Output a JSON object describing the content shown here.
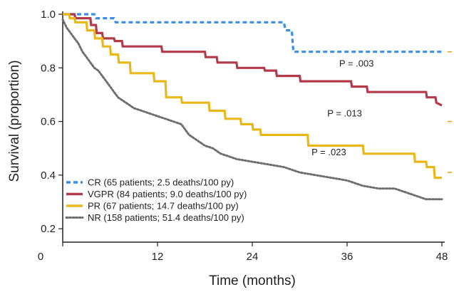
{
  "chart_data": {
    "type": "line",
    "xlabel": "Time (months)",
    "ylabel": "Survival (proportion)",
    "xlim": [
      0,
      48
    ],
    "ylim": [
      0.15,
      1.0
    ],
    "x_ticks": [
      0,
      12,
      24,
      36,
      48
    ],
    "y_ticks": [
      0.2,
      0.4,
      0.6,
      0.8,
      1.0
    ],
    "y_tick_labels": [
      "0.2",
      "0.4",
      "0.6",
      "0.8",
      "1.0"
    ],
    "grid": false,
    "legend_position": "bottom-left",
    "series": [
      {
        "name": "CR",
        "legend_suffix": "(65 patients; 2.5 deaths/100 py)",
        "color": "#3a8ee6",
        "style": "dashed",
        "points": [
          [
            0,
            1.0
          ],
          [
            4,
            1.0
          ],
          [
            4.2,
            0.985
          ],
          [
            6.5,
            0.985
          ],
          [
            6.7,
            0.97
          ],
          [
            28,
            0.97
          ],
          [
            28.2,
            0.94
          ],
          [
            29,
            0.94
          ],
          [
            29.2,
            0.86
          ],
          [
            48,
            0.86
          ]
        ]
      },
      {
        "name": "VGPR",
        "legend_suffix": "(84 patients; 9.0 deaths/100 py)",
        "color": "#b23a4a",
        "style": "solid",
        "points": [
          [
            0,
            1.0
          ],
          [
            1.5,
            1.0
          ],
          [
            1.6,
            0.985
          ],
          [
            3.5,
            0.985
          ],
          [
            3.6,
            0.96
          ],
          [
            4.2,
            0.96
          ],
          [
            4.3,
            0.93
          ],
          [
            5,
            0.93
          ],
          [
            5.1,
            0.91
          ],
          [
            6.5,
            0.91
          ],
          [
            6.6,
            0.9
          ],
          [
            7.5,
            0.9
          ],
          [
            7.6,
            0.88
          ],
          [
            12.5,
            0.88
          ],
          [
            12.6,
            0.86
          ],
          [
            18,
            0.86
          ],
          [
            18.1,
            0.84
          ],
          [
            19.5,
            0.84
          ],
          [
            19.6,
            0.82
          ],
          [
            22,
            0.82
          ],
          [
            22.1,
            0.8
          ],
          [
            25.5,
            0.8
          ],
          [
            25.6,
            0.79
          ],
          [
            27,
            0.79
          ],
          [
            27.1,
            0.77
          ],
          [
            30,
            0.77
          ],
          [
            30.1,
            0.75
          ],
          [
            36.5,
            0.75
          ],
          [
            36.6,
            0.73
          ],
          [
            38.5,
            0.73
          ],
          [
            38.6,
            0.71
          ],
          [
            46,
            0.71
          ],
          [
            46.1,
            0.69
          ],
          [
            47.2,
            0.69
          ],
          [
            47.3,
            0.67
          ],
          [
            48,
            0.66
          ]
        ]
      },
      {
        "name": "PR",
        "legend_suffix": "(67 patients; 14.7 deaths/100 py)",
        "color": "#e8b818",
        "style": "solid",
        "points": [
          [
            0,
            1.0
          ],
          [
            0.8,
            1.0
          ],
          [
            0.9,
            0.985
          ],
          [
            1.5,
            0.985
          ],
          [
            1.6,
            0.97
          ],
          [
            3,
            0.97
          ],
          [
            3.1,
            0.94
          ],
          [
            4,
            0.94
          ],
          [
            4.1,
            0.91
          ],
          [
            5,
            0.91
          ],
          [
            5.1,
            0.88
          ],
          [
            6,
            0.88
          ],
          [
            6.1,
            0.85
          ],
          [
            7,
            0.85
          ],
          [
            7.1,
            0.82
          ],
          [
            8.5,
            0.82
          ],
          [
            8.6,
            0.78
          ],
          [
            11.5,
            0.78
          ],
          [
            11.6,
            0.75
          ],
          [
            13,
            0.75
          ],
          [
            13.1,
            0.69
          ],
          [
            15,
            0.69
          ],
          [
            15.1,
            0.67
          ],
          [
            18.5,
            0.67
          ],
          [
            18.6,
            0.64
          ],
          [
            20.5,
            0.64
          ],
          [
            20.6,
            0.61
          ],
          [
            22.5,
            0.61
          ],
          [
            22.6,
            0.59
          ],
          [
            24,
            0.59
          ],
          [
            24.1,
            0.57
          ],
          [
            25,
            0.57
          ],
          [
            25.1,
            0.55
          ],
          [
            31,
            0.55
          ],
          [
            31.1,
            0.51
          ],
          [
            38,
            0.51
          ],
          [
            38.1,
            0.48
          ],
          [
            44.5,
            0.48
          ],
          [
            44.6,
            0.45
          ],
          [
            46,
            0.45
          ],
          [
            46.1,
            0.43
          ],
          [
            47,
            0.43
          ],
          [
            47.1,
            0.39
          ],
          [
            48,
            0.39
          ]
        ]
      },
      {
        "name": "NR",
        "legend_suffix": "(158 patients; 51.4 deaths/100 py)",
        "color": "#6e6e6e",
        "style": "dotted",
        "points": [
          [
            0,
            0.98
          ],
          [
            0.5,
            0.95
          ],
          [
            1,
            0.93
          ],
          [
            1.5,
            0.91
          ],
          [
            2,
            0.89
          ],
          [
            2.5,
            0.86
          ],
          [
            3,
            0.84
          ],
          [
            3.5,
            0.82
          ],
          [
            4,
            0.8
          ],
          [
            4.5,
            0.79
          ],
          [
            5,
            0.77
          ],
          [
            5.5,
            0.75
          ],
          [
            6,
            0.73
          ],
          [
            6.5,
            0.71
          ],
          [
            7,
            0.69
          ],
          [
            8,
            0.67
          ],
          [
            9,
            0.65
          ],
          [
            10,
            0.64
          ],
          [
            11,
            0.63
          ],
          [
            12,
            0.62
          ],
          [
            13,
            0.61
          ],
          [
            14,
            0.6
          ],
          [
            15,
            0.59
          ],
          [
            16,
            0.55
          ],
          [
            17,
            0.53
          ],
          [
            18,
            0.51
          ],
          [
            19,
            0.5
          ],
          [
            20,
            0.48
          ],
          [
            21,
            0.47
          ],
          [
            22,
            0.46
          ],
          [
            24,
            0.45
          ],
          [
            26,
            0.44
          ],
          [
            28,
            0.43
          ],
          [
            30,
            0.41
          ],
          [
            32,
            0.4
          ],
          [
            34,
            0.39
          ],
          [
            36,
            0.38
          ],
          [
            38,
            0.36
          ],
          [
            40,
            0.35
          ],
          [
            42,
            0.35
          ],
          [
            44,
            0.33
          ],
          [
            46,
            0.31
          ],
          [
            48,
            0.31
          ]
        ]
      }
    ],
    "annotations": [
      {
        "text": "P = .003",
        "x": 35,
        "y": 0.815
      },
      {
        "text": "P = .013",
        "x": 33.5,
        "y": 0.63
      },
      {
        "text": "P = .023",
        "x": 31.5,
        "y": 0.485
      }
    ]
  }
}
